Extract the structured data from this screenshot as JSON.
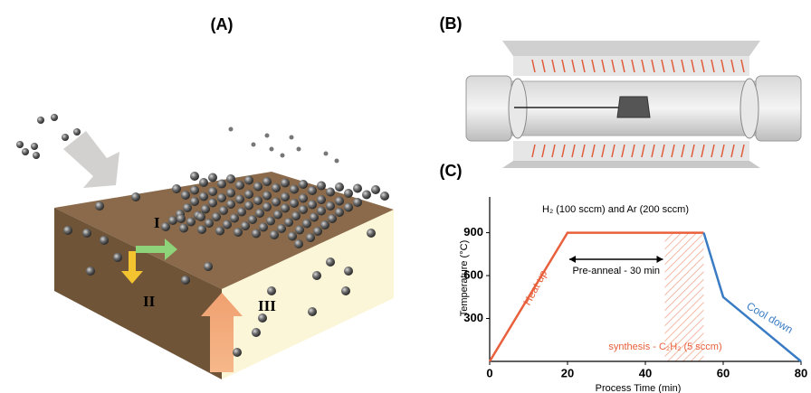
{
  "panels": [
    "(A)",
    "(B)",
    "(C)"
  ],
  "panel_a": {
    "labels": [
      "I",
      "II",
      "III"
    ]
  },
  "chart_data": {
    "type": "line",
    "x_label": "Process Time (min)",
    "y_label": "Temperature (°C)",
    "xlim": [
      0,
      80
    ],
    "xticks": [
      0,
      20,
      40,
      60,
      80
    ],
    "ylim": [
      0,
      1150
    ],
    "yticks": [
      300,
      600,
      900
    ],
    "series": [
      {
        "name": "Heat up",
        "color": "#e8603c",
        "x": [
          0,
          20,
          55
        ],
        "values": [
          0,
          900,
          900
        ]
      },
      {
        "name": "Cool down",
        "color": "#3a7cc4",
        "x": [
          55,
          60,
          80
        ],
        "values": [
          900,
          450,
          0
        ]
      }
    ],
    "shaded_x": [
      45,
      55
    ],
    "arrow_x": [
      20,
      45
    ],
    "annotations": [
      "H₂ (100 sccm) and Ar (200 sccm)",
      "Pre-anneal - 30 min",
      "synthesis - C₂H₂ (5 sccm)"
    ]
  }
}
